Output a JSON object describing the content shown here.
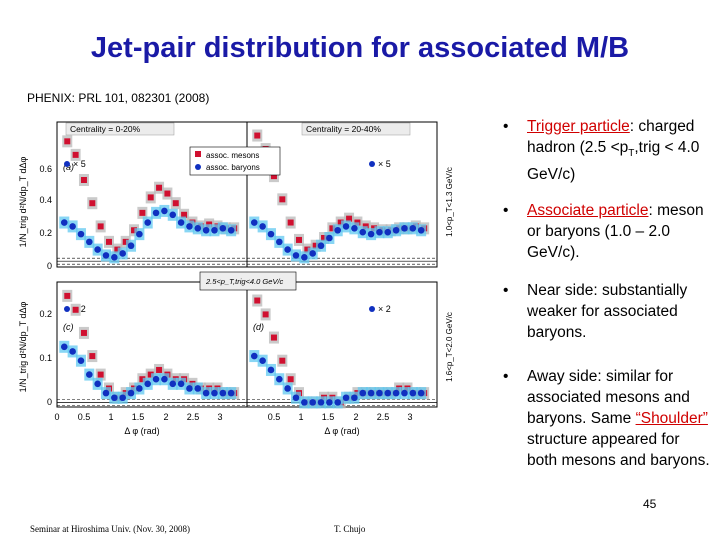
{
  "slide": {
    "title": "Jet-pair distribution for associated M/B",
    "reference": "PHENIX: PRL 101, 082301 (2008)",
    "page_number": "45",
    "footer_left": "Seminar at Hiroshima Univ. (Nov. 30, 2008)",
    "footer_right": "T. Chujo"
  },
  "bullets": {
    "b1": {
      "label": "Trigger particle",
      "colon": ":",
      "text": " charged hadron (2.5 <p",
      "sub": "T",
      "text2": ",trig < 4.0 GeV/c)"
    },
    "b2": {
      "label": "Associate particle",
      "colon": ":",
      "text": " meson or baryons (1.0 – 2.0 GeV/c)."
    },
    "b3": {
      "text": "Near side: substantially weaker for associated baryons."
    },
    "b4": {
      "text1": "Away side: similar for associated mesons and baryons. Same ",
      "shoulder": "“Shoulder” ",
      "text2": "structure appeared for both mesons and baryons."
    },
    "bullet_char": "•"
  },
  "figure": {
    "panels": [
      {
        "tag": "(a)",
        "centrality": "Centrality = 0-20%",
        "scale_label": "× 5"
      },
      {
        "tag": "(b)",
        "centrality": "Centrality = 20-40%",
        "scale_label": "× 5"
      },
      {
        "tag": "(c)",
        "centrality": "",
        "scale_label": "× 2"
      },
      {
        "tag": "(d)",
        "centrality": "",
        "scale_label": "× 2"
      }
    ],
    "legend": {
      "mesons": "assoc. mesons",
      "baryons": "assoc. baryons"
    },
    "trigger_box": "2.5<p_T,trig<4.0 GeV/c",
    "ylabel": "1/N_trig d²N/dp_T dΔφ",
    "right_label_top": "1.0<p_T<1.3 GeV/c",
    "right_label_bottom": "1.6<p_T<2.0 GeV/c",
    "xlabel": "Δ φ (rad)",
    "x_ticks_left": [
      "0",
      "0.5",
      "1",
      "1.5",
      "2",
      "2.5",
      "3"
    ],
    "x_ticks_right": [
      "0.5",
      "1",
      "1.5",
      "2",
      "2.5",
      "3"
    ],
    "y_ticks_top": [
      "0",
      "0.2",
      "0.4",
      "0.6"
    ],
    "y_ticks_bottom": [
      "0",
      "0.1",
      "0.2"
    ],
    "colors": {
      "meson": "#d01030",
      "baryon": "#1030c0",
      "meson_sys": "#b8b8b8",
      "baryon_sys": "#60c8f0"
    }
  },
  "chart_data": {
    "type": "scatter",
    "x": [
      0.05,
      0.2,
      0.35,
      0.5,
      0.65,
      0.8,
      0.95,
      1.1,
      1.25,
      1.4,
      1.55,
      1.7,
      1.85,
      2.0,
      2.15,
      2.3,
      2.45,
      2.6,
      2.75,
      2.9,
      3.05
    ],
    "panels": [
      {
        "tag": "(a)",
        "xlim": [
          0,
          3.2
        ],
        "ylim": [
          -0.03,
          0.72
        ],
        "series": [
          {
            "name": "assoc. mesons",
            "values": [
              0.62,
              0.55,
              0.42,
              0.3,
              0.18,
              0.1,
              0.06,
              0.1,
              0.16,
              0.25,
              0.33,
              0.38,
              0.35,
              0.3,
              0.24,
              0.2,
              0.18,
              0.19,
              0.18,
              0.17,
              0.17
            ]
          },
          {
            "name": "assoc. baryons",
            "values": [
              0.2,
              0.18,
              0.14,
              0.1,
              0.06,
              0.03,
              0.02,
              0.04,
              0.08,
              0.14,
              0.2,
              0.25,
              0.26,
              0.24,
              0.2,
              0.18,
              0.17,
              0.16,
              0.16,
              0.17,
              0.16
            ]
          }
        ]
      },
      {
        "tag": "(b)",
        "xlim": [
          0,
          3.2
        ],
        "ylim": [
          -0.03,
          0.72
        ],
        "series": [
          {
            "name": "assoc. mesons",
            "values": [
              0.65,
              0.58,
              0.44,
              0.32,
              0.2,
              0.11,
              0.06,
              0.08,
              0.12,
              0.17,
              0.2,
              0.22,
              0.2,
              0.18,
              0.17,
              0.16,
              0.16,
              0.17,
              0.17,
              0.18,
              0.17
            ]
          },
          {
            "name": "assoc. baryons",
            "values": [
              0.2,
              0.18,
              0.14,
              0.1,
              0.06,
              0.03,
              0.02,
              0.04,
              0.08,
              0.12,
              0.16,
              0.18,
              0.17,
              0.15,
              0.14,
              0.15,
              0.15,
              0.16,
              0.17,
              0.17,
              0.16
            ]
          }
        ]
      },
      {
        "tag": "(c)",
        "xlim": [
          0,
          3.2
        ],
        "ylim": [
          -0.01,
          0.26
        ],
        "series": [
          {
            "name": "assoc. mesons",
            "values": [
              0.23,
              0.2,
              0.15,
              0.1,
              0.06,
              0.03,
              0.01,
              0.02,
              0.03,
              0.05,
              0.06,
              0.07,
              0.06,
              0.05,
              0.05,
              0.04,
              0.03,
              0.03,
              0.03,
              0.02,
              0.02
            ]
          },
          {
            "name": "assoc. baryons",
            "values": [
              0.12,
              0.11,
              0.09,
              0.06,
              0.04,
              0.02,
              0.01,
              0.01,
              0.02,
              0.03,
              0.04,
              0.05,
              0.05,
              0.04,
              0.04,
              0.03,
              0.03,
              0.02,
              0.02,
              0.02,
              0.02
            ]
          }
        ]
      },
      {
        "tag": "(d)",
        "xlim": [
          0,
          3.2
        ],
        "ylim": [
          -0.01,
          0.26
        ],
        "series": [
          {
            "name": "assoc. mesons",
            "values": [
              0.22,
              0.19,
              0.14,
              0.09,
              0.05,
              0.02,
              0.0,
              0.0,
              0.01,
              0.01,
              0.0,
              0.01,
              0.02,
              0.02,
              0.02,
              0.02,
              0.02,
              0.03,
              0.03,
              0.02,
              0.02
            ]
          },
          {
            "name": "assoc. baryons",
            "values": [
              0.1,
              0.09,
              0.07,
              0.05,
              0.03,
              0.01,
              0.0,
              0.0,
              0.0,
              0.0,
              0.0,
              0.01,
              0.01,
              0.02,
              0.02,
              0.02,
              0.02,
              0.02,
              0.02,
              0.02,
              0.02
            ]
          }
        ]
      }
    ]
  }
}
